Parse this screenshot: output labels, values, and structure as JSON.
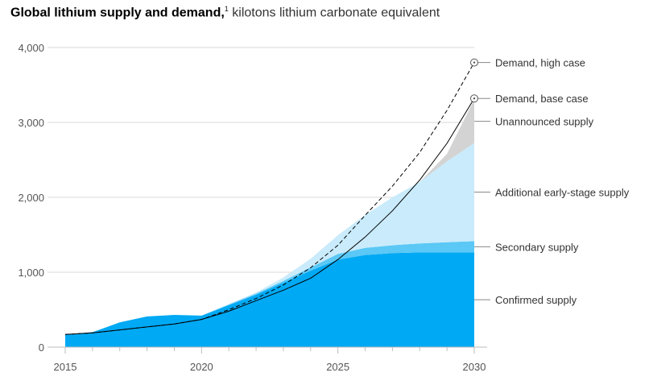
{
  "title": {
    "bold": "Global lithium supply and demand,",
    "footnote": "1",
    "unit": "kilotons lithium carbonate equivalent"
  },
  "colors": {
    "confirmed": "#00a9f4",
    "secondary": "#5bc8f5",
    "early_stage": "#c9ebfb",
    "unannounced": "#d3d3d3",
    "demand": "#000000",
    "gridline": "#d9d9d9"
  },
  "chart_data": {
    "type": "area",
    "title": "Global lithium supply and demand, kilotons lithium carbonate equivalent",
    "xlabel": "",
    "ylabel": "",
    "xlim": [
      2015,
      2030
    ],
    "ylim": [
      0,
      4000
    ],
    "x_ticks": [
      "2015",
      "2020",
      "2025",
      "2030"
    ],
    "y_ticks": [
      {
        "value": 0,
        "label": "0"
      },
      {
        "value": 1000,
        "label": "1,000"
      },
      {
        "value": 2000,
        "label": "2,000"
      },
      {
        "value": 3000,
        "label": "3,000"
      },
      {
        "value": 4000,
        "label": "4,000"
      }
    ],
    "grid": "horizontal",
    "x": [
      2015,
      2016,
      2017,
      2018,
      2019,
      2020,
      2021,
      2022,
      2023,
      2024,
      2025,
      2026,
      2027,
      2028,
      2029,
      2030
    ],
    "stacked_series": [
      {
        "name": "Confirmed supply",
        "values": [
          170,
          200,
          330,
          410,
          430,
          420,
          560,
          700,
          860,
          1020,
          1170,
          1230,
          1255,
          1265,
          1265,
          1265
        ]
      },
      {
        "name": "Secondary supply",
        "values": [
          0,
          0,
          0,
          0,
          0,
          0,
          10,
          15,
          25,
          45,
          75,
          95,
          105,
          120,
          135,
          150
        ]
      },
      {
        "name": "Additional early-stage supply",
        "values": [
          0,
          0,
          0,
          0,
          0,
          0,
          5,
          15,
          45,
          115,
          250,
          440,
          640,
          820,
          1080,
          1310
        ]
      },
      {
        "name": "Unannounced supply",
        "values": [
          0,
          0,
          0,
          0,
          0,
          0,
          0,
          0,
          0,
          0,
          0,
          0,
          0,
          0,
          100,
          580
        ]
      }
    ],
    "lines": [
      {
        "name": "Demand, high case",
        "style": "dashed",
        "values": [
          170,
          190,
          230,
          270,
          310,
          370,
          500,
          650,
          830,
          1060,
          1360,
          1760,
          2150,
          2600,
          3160,
          3800
        ]
      },
      {
        "name": "Demand, base case",
        "style": "solid",
        "values": [
          170,
          190,
          230,
          270,
          310,
          370,
          480,
          620,
          760,
          920,
          1170,
          1470,
          1820,
          2230,
          2720,
          3320
        ]
      }
    ],
    "labels": [
      {
        "text": "Demand, high case",
        "target": "line",
        "index": 0
      },
      {
        "text": "Demand, base case",
        "target": "line",
        "index": 1
      },
      {
        "text": "Unannounced supply",
        "target": "band",
        "index": 3
      },
      {
        "text": "Additional early-stage supply",
        "target": "band",
        "index": 2
      },
      {
        "text": "Secondary supply",
        "target": "band",
        "index": 1
      },
      {
        "text": "Confirmed supply",
        "target": "band",
        "index": 0
      }
    ]
  }
}
